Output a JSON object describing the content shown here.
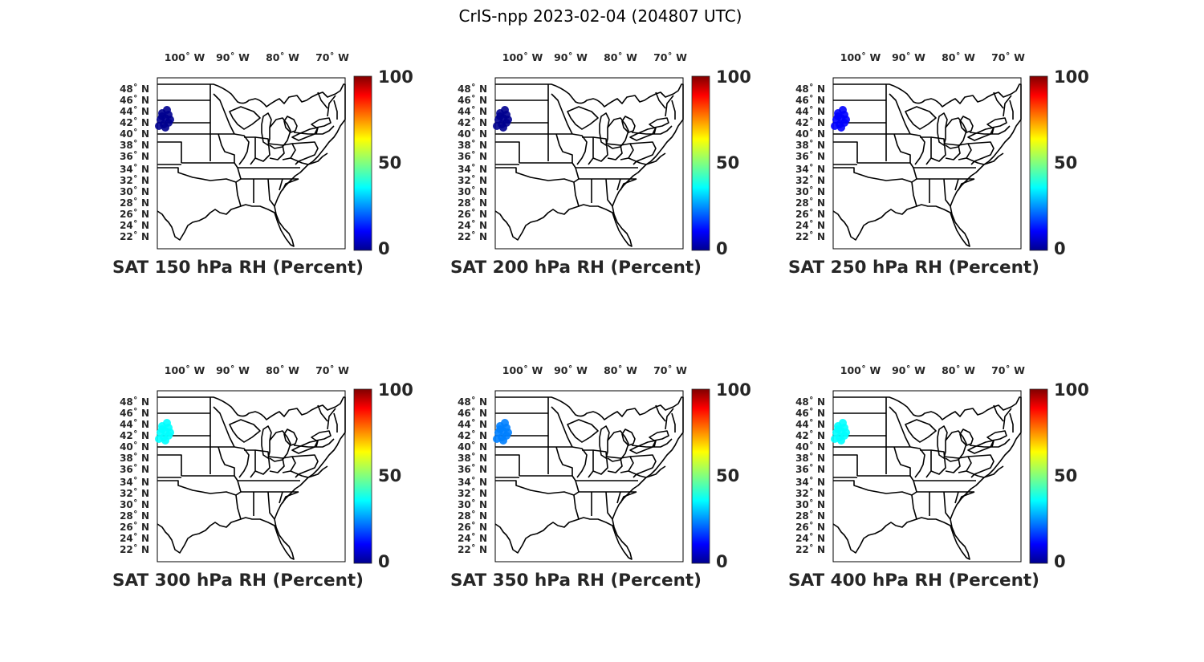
{
  "title": "CrIS-npp 2023-02-04 (204807 UTC)",
  "lon_labels": [
    "100",
    "90",
    "80",
    "70"
  ],
  "lon_hemi": "W",
  "lat_labels": [
    "48",
    "46",
    "44",
    "42",
    "40",
    "38",
    "36",
    "34",
    "32",
    "30",
    "28",
    "26",
    "24",
    "22"
  ],
  "lat_hemi": "N",
  "colorbar": {
    "ticks": [
      "100",
      "50",
      "0"
    ],
    "range": [
      0,
      100
    ],
    "colormap": "jet"
  },
  "panels": [
    {
      "title": "SAT 150 hPa RH (Percent)",
      "rh_percent": 5
    },
    {
      "title": "SAT 200 hPa RH (Percent)",
      "rh_percent": 6
    },
    {
      "title": "SAT 250 hPa RH (Percent)",
      "rh_percent": 8
    },
    {
      "title": "SAT 300 hPa RH (Percent)",
      "rh_percent": 32
    },
    {
      "title": "SAT 350 hPa RH (Percent)",
      "rh_percent": 20
    },
    {
      "title": "SAT 400 hPa RH (Percent)",
      "rh_percent": 36
    }
  ],
  "colors": {
    "jet": [
      "#00008f",
      "#0000ff",
      "#0080ff",
      "#00ffff",
      "#80ff80",
      "#ffff00",
      "#ff8000",
      "#ff0000",
      "#800000"
    ]
  }
}
